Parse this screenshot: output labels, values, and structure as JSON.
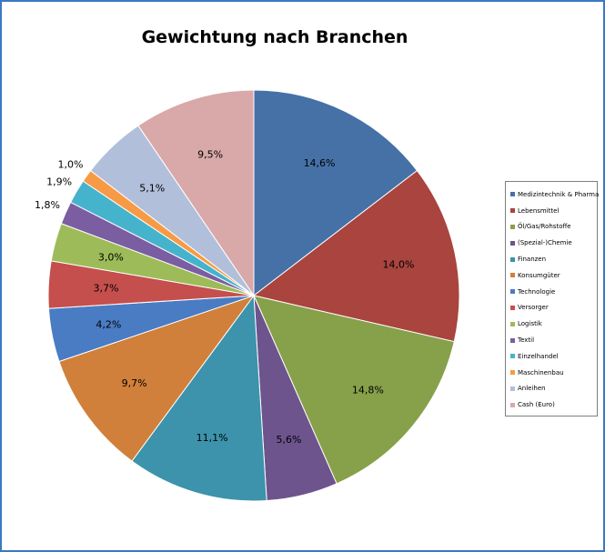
{
  "chart_data": {
    "type": "pie",
    "title": "Gewichtung nach Branchen",
    "legend_position": "right",
    "slices": [
      {
        "label": "Medizintechnik & Pharma",
        "value": 14.6,
        "value_label": "14,6%",
        "color": "#4571a7"
      },
      {
        "label": "Lebensmittel",
        "value": 14.0,
        "value_label": "14,0%",
        "color": "#a9443f"
      },
      {
        "label": "Öl/Gas/Rohstoffe",
        "value": 14.8,
        "value_label": "14,8%",
        "color": "#87a04a"
      },
      {
        "label": "(Spezial-)Chemie",
        "value": 5.6,
        "value_label": "5,6%",
        "color": "#6e548d"
      },
      {
        "label": "Finanzen",
        "value": 11.1,
        "value_label": "11,1%",
        "color": "#3c93ab"
      },
      {
        "label": "Konsumgüter",
        "value": 9.7,
        "value_label": "9,7%",
        "color": "#d0803a"
      },
      {
        "label": "Technologie",
        "value": 4.2,
        "value_label": "4,2%",
        "color": "#4a7cc4"
      },
      {
        "label": "Versorger",
        "value": 3.7,
        "value_label": "3,7%",
        "color": "#c54f4d"
      },
      {
        "label": "Logistik",
        "value": 3.0,
        "value_label": "3,0%",
        "color": "#9dbc59"
      },
      {
        "label": "Textil",
        "value": 1.8,
        "value_label": "1,8%",
        "color": "#7b5da2"
      },
      {
        "label": "Einzelhandel",
        "value": 1.9,
        "value_label": "1,9%",
        "color": "#45b3cc"
      },
      {
        "label": "Maschinenbau",
        "value": 1.0,
        "value_label": "1,0%",
        "color": "#f79a45"
      },
      {
        "label": "Anleihen",
        "value": 5.1,
        "value_label": "5,1%",
        "color": "#b2bfdb"
      },
      {
        "label": "Cash (Euro)",
        "value": 9.5,
        "value_label": "9,5%",
        "color": "#d9a8a8"
      }
    ]
  }
}
